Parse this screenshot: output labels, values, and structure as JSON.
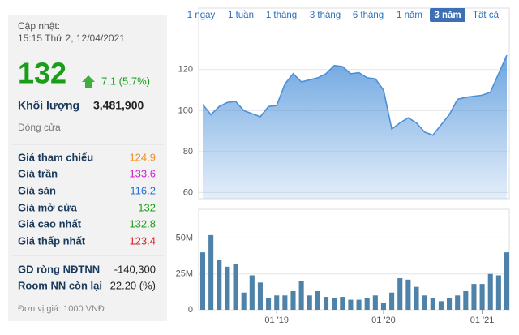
{
  "panel": {
    "update_label": "Cập nhật:",
    "update_time": "15:15 Thứ 2, 12/04/2021",
    "price": 132,
    "change": "7.1 (5.7%)",
    "volume_label": "Khối lượng",
    "volume": "3,481,900",
    "close_label": "Đóng cửa",
    "rows": [
      {
        "label": "Giá tham chiếu",
        "value": 124.9,
        "color": "#f0901e"
      },
      {
        "label": "Giá trần",
        "value": 133.6,
        "color": "#d21fd2"
      },
      {
        "label": "Giá sàn",
        "value": 116.2,
        "color": "#2a6fd1"
      },
      {
        "label": "Giá mở cửa",
        "value": 132,
        "color": "#1a9e1a"
      },
      {
        "label": "Giá cao nhất",
        "value": 132.8,
        "color": "#1a9e1a"
      },
      {
        "label": "Giá thấp nhất",
        "value": 123.4,
        "color": "#d42020"
      }
    ],
    "foreign": [
      {
        "label": "GD ròng NĐTNN",
        "value": "-140,300"
      },
      {
        "label": "Room NN còn lại",
        "value": "22.20 (%)"
      }
    ],
    "unit_note": "Đơn vị giá: 1000 VNĐ"
  },
  "tabs": [
    "1 ngày",
    "1 tuần",
    "1 tháng",
    "3 tháng",
    "6 tháng",
    "1 năm",
    "3 năm",
    "Tất cả"
  ],
  "active_tab": 6,
  "chart_data": [
    {
      "type": "line",
      "color": "#4a90d9",
      "values": [
        103,
        98,
        102,
        104,
        104.5,
        100,
        98.5,
        97,
        102,
        102.5,
        113,
        118,
        114,
        115,
        116,
        118,
        122,
        121.5,
        118,
        118.5,
        116,
        115.5,
        110,
        91,
        94,
        96.5,
        94,
        89.5,
        88,
        93,
        98,
        105.5,
        106.5,
        107,
        107.5,
        109,
        118,
        127
      ],
      "ylim": [
        57,
        150
      ],
      "yticks": [
        60,
        80,
        100,
        120
      ],
      "grid": true
    },
    {
      "type": "bar",
      "color": "#4f82a8",
      "categories": [
        null,
        null,
        null,
        null,
        null,
        null,
        null,
        null,
        null,
        "01 '19",
        null,
        null,
        null,
        null,
        null,
        null,
        null,
        null,
        null,
        null,
        null,
        null,
        "01 '20",
        null,
        null,
        null,
        null,
        null,
        null,
        null,
        null,
        null,
        null,
        null,
        "01 '21",
        null,
        null,
        null
      ],
      "values": [
        40000000,
        52000000,
        35000000,
        30000000,
        32000000,
        12000000,
        24000000,
        19000000,
        8000000,
        10000000,
        10000000,
        13000000,
        20000000,
        10000000,
        13000000,
        9000000,
        8000000,
        9000000,
        7000000,
        7000000,
        8000000,
        10000000,
        5000000,
        12000000,
        22000000,
        21000000,
        16000000,
        10000000,
        8000000,
        6000000,
        8000000,
        10000000,
        13000000,
        18000000,
        18000000,
        25000000,
        24000000,
        40000000
      ],
      "ylim": [
        0,
        70000000
      ],
      "yticks": [
        0,
        {
          "value": 25000000,
          "label": "25M"
        },
        {
          "value": 50000000,
          "label": "50M"
        }
      ],
      "grid": true
    }
  ]
}
